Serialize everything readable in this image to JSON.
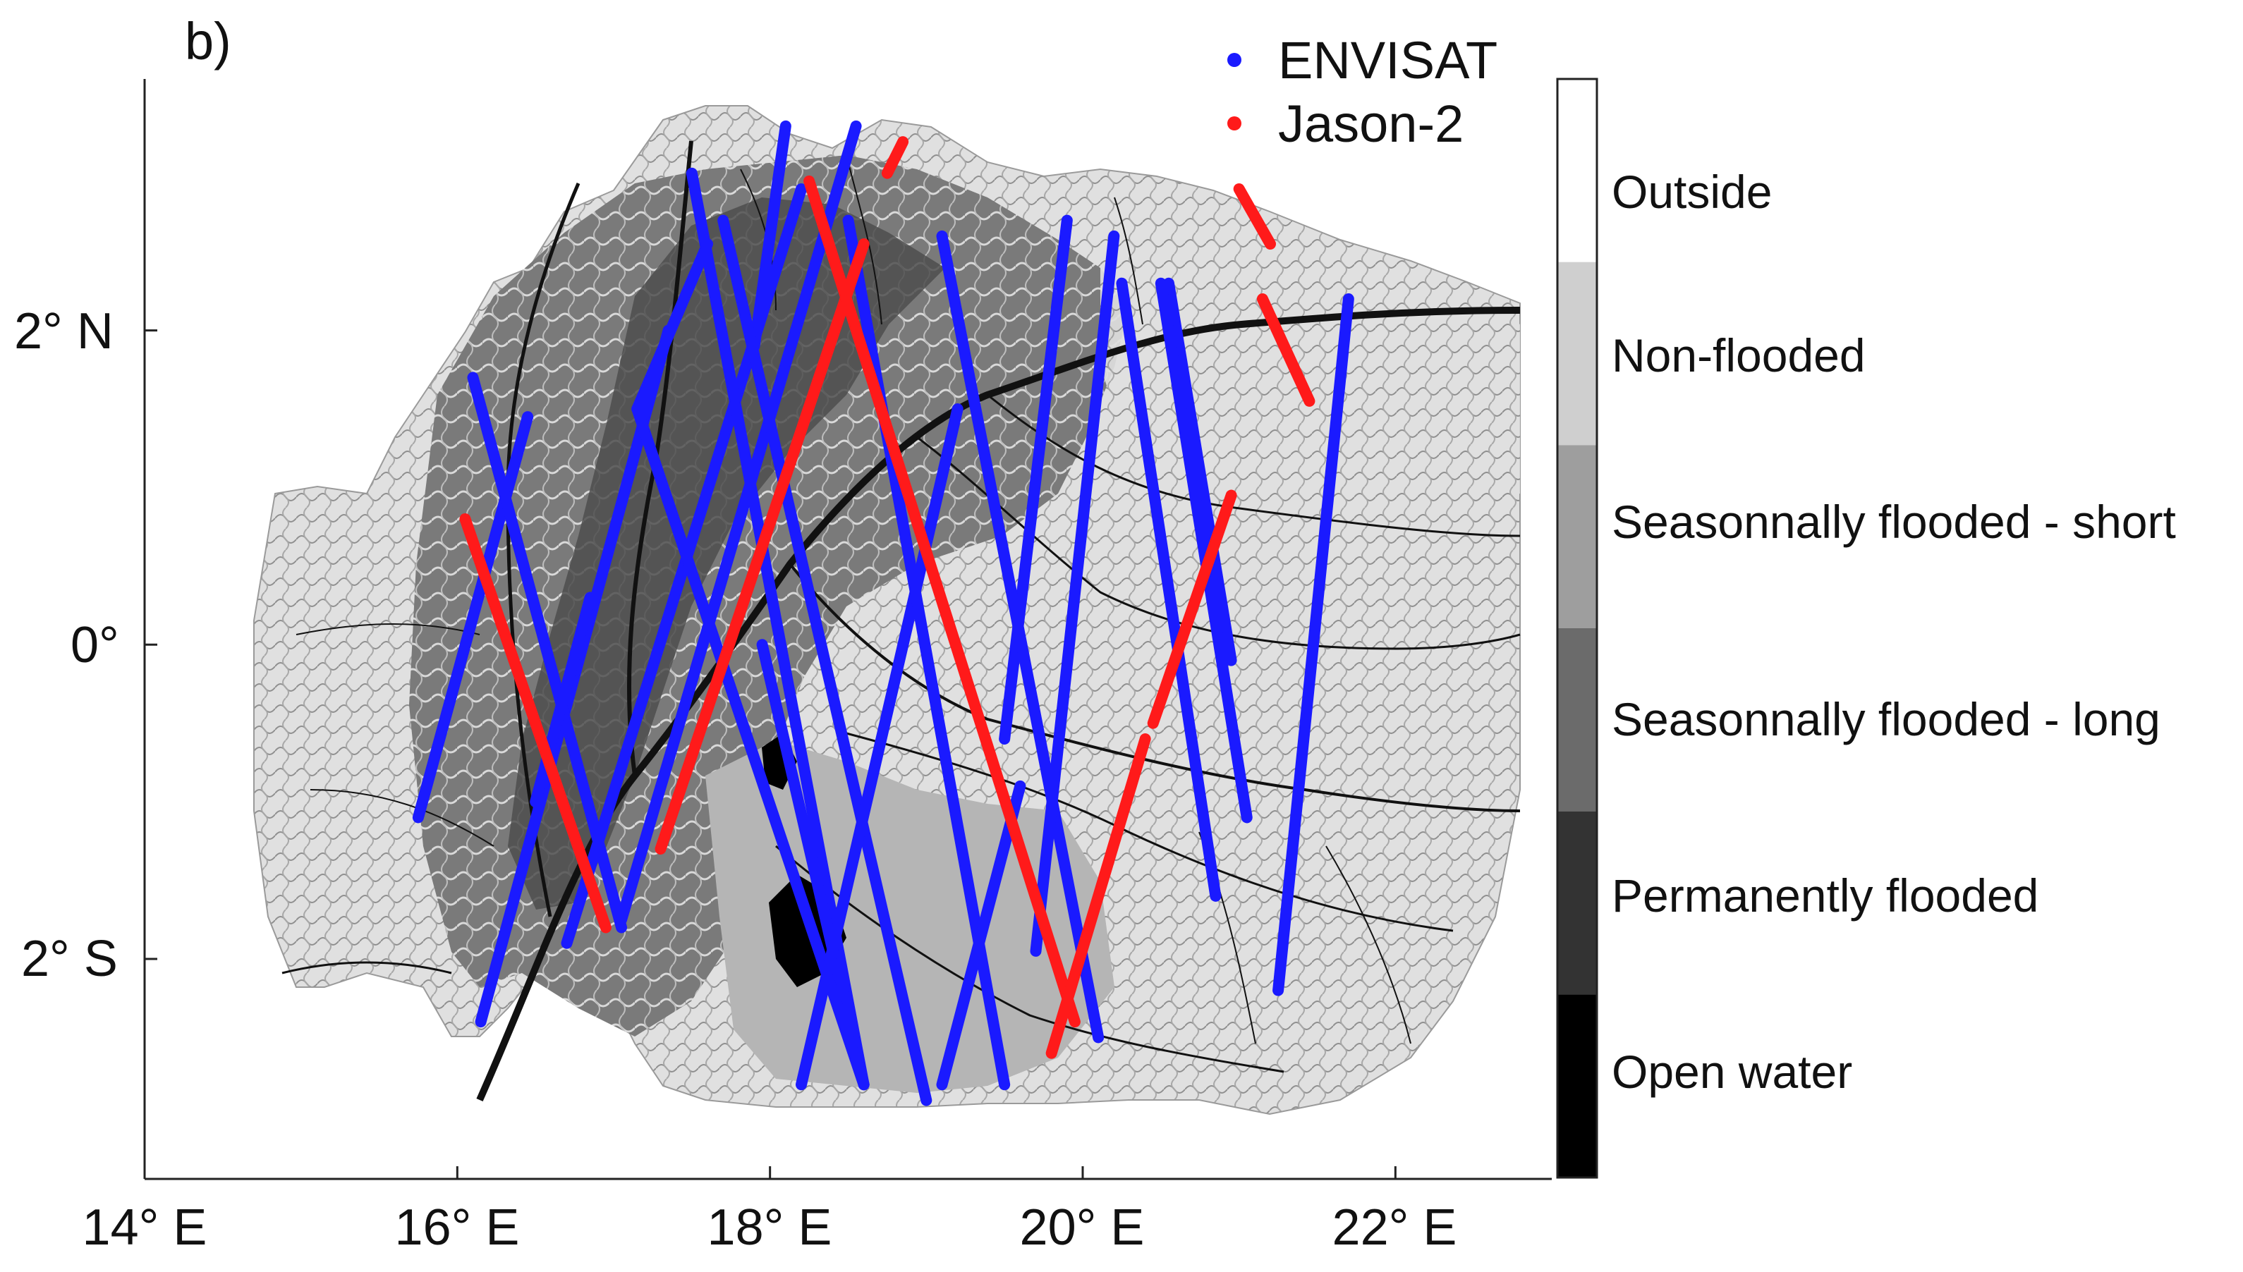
{
  "panel_label": "b)",
  "legend": {
    "entries": [
      {
        "label": "ENVISAT",
        "color": "#1a1aff"
      },
      {
        "label": "Jason-2",
        "color": "#ff1a1a"
      }
    ]
  },
  "map": {
    "x_ticks": [
      "14° E",
      "16° E",
      "18° E",
      "20° E",
      "22° E"
    ],
    "x_tick_values": [
      14,
      16,
      18,
      20,
      22
    ],
    "y_ticks": [
      "2° N",
      "0°",
      "2° S"
    ],
    "y_tick_values": [
      2,
      0,
      -2
    ],
    "lon_range": [
      14,
      23
    ],
    "lat_range": [
      -3.4,
      3.6
    ]
  },
  "colorbar": {
    "classes": [
      {
        "label": "Outside",
        "color": "#ffffff"
      },
      {
        "label": "Non-flooded",
        "color": "#cfcfcf"
      },
      {
        "label": "Seasonnally flooded - short",
        "color": "#9e9e9e"
      },
      {
        "label": "Seasonnally flooded - long",
        "color": "#6b6b6b"
      },
      {
        "label": "Permanently flooded",
        "color": "#333333"
      },
      {
        "label": "Open water",
        "color": "#000000"
      }
    ]
  },
  "tracks": {
    "envisat": [
      [
        [
          16.15,
          -2.4
        ],
        [
          17.35,
          2.0
        ]
      ],
      [
        [
          15.75,
          -1.1
        ],
        [
          16.45,
          1.45
        ]
      ],
      [
        [
          17.05,
          -1.8
        ],
        [
          16.1,
          1.7
        ]
      ],
      [
        [
          17.05,
          -1.75
        ],
        [
          18.55,
          3.3
        ]
      ],
      [
        [
          16.7,
          -1.9
        ],
        [
          18.2,
          2.9
        ]
      ],
      [
        [
          16.5,
          -1.0
        ],
        [
          16.85,
          0.3
        ]
      ],
      [
        [
          17.5,
          3.0
        ],
        [
          18.6,
          -2.8
        ]
      ],
      [
        [
          18.6,
          -2.8
        ],
        [
          17.95,
          0.0
        ]
      ],
      [
        [
          17.15,
          1.5
        ],
        [
          18.6,
          -2.8
        ]
      ],
      [
        [
          17.6,
          2.55
        ],
        [
          17.15,
          1.5
        ]
      ],
      [
        [
          18.1,
          3.3
        ],
        [
          17.9,
          1.9
        ]
      ],
      [
        [
          17.7,
          2.7
        ],
        [
          19.0,
          -2.9
        ]
      ],
      [
        [
          18.2,
          -2.8
        ],
        [
          19.2,
          1.5
        ]
      ],
      [
        [
          18.5,
          2.7
        ],
        [
          19.5,
          -2.8
        ]
      ],
      [
        [
          19.1,
          -2.8
        ],
        [
          19.6,
          -0.9
        ]
      ],
      [
        [
          19.5,
          -0.6
        ],
        [
          19.9,
          2.7
        ]
      ],
      [
        [
          19.1,
          2.6
        ],
        [
          20.1,
          -2.5
        ]
      ],
      [
        [
          20.2,
          2.6
        ],
        [
          19.7,
          -1.95
        ]
      ],
      [
        [
          20.25,
          2.3
        ],
        [
          20.85,
          -1.6
        ]
      ],
      [
        [
          20.55,
          2.3
        ],
        [
          20.95,
          -0.1
        ]
      ],
      [
        [
          21.05,
          -1.1
        ],
        [
          20.5,
          2.3
        ]
      ],
      [
        [
          21.7,
          2.2
        ],
        [
          21.25,
          -2.2
        ]
      ]
    ],
    "jason2": [
      [
        [
          16.05,
          0.8
        ],
        [
          16.95,
          -1.8
        ]
      ],
      [
        [
          17.3,
          -1.3
        ],
        [
          18.6,
          2.55
        ]
      ],
      [
        [
          18.25,
          2.95
        ],
        [
          19.95,
          -2.4
        ]
      ],
      [
        [
          19.8,
          -2.6
        ],
        [
          20.4,
          -0.6
        ]
      ],
      [
        [
          20.45,
          -0.5
        ],
        [
          20.95,
          0.95
        ]
      ],
      [
        [
          21.15,
          2.2
        ],
        [
          21.45,
          1.55
        ]
      ],
      [
        [
          21.0,
          2.9
        ],
        [
          21.2,
          2.55
        ]
      ],
      [
        [
          18.75,
          3.0
        ],
        [
          18.85,
          3.2
        ]
      ]
    ]
  }
}
